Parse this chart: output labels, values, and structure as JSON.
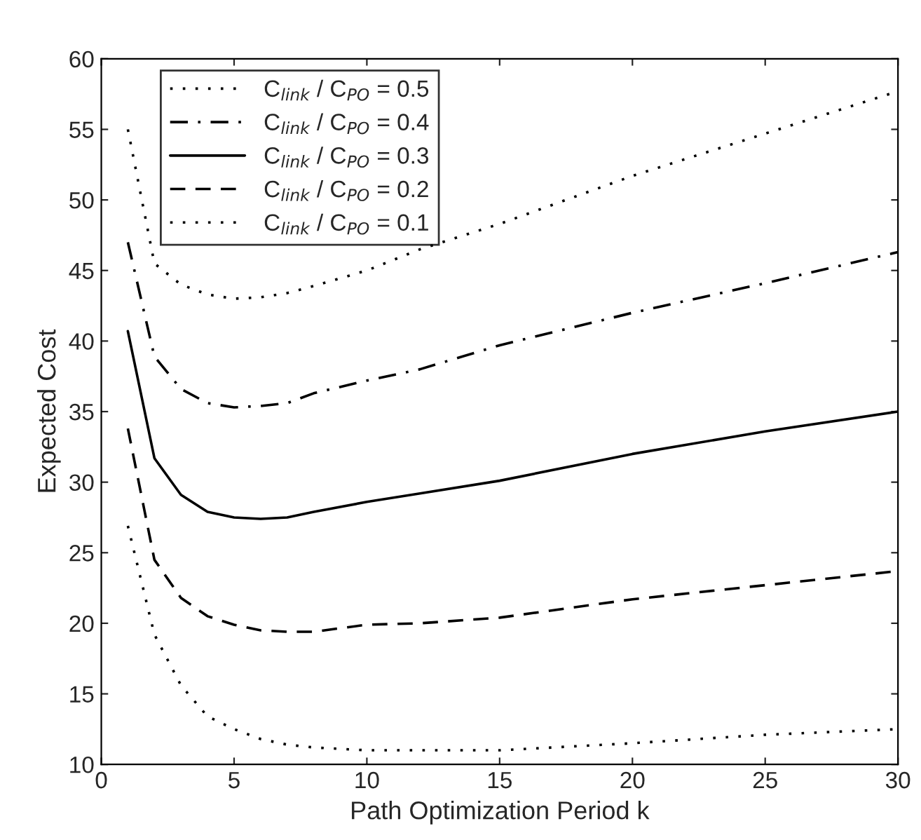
{
  "chart_data": {
    "type": "line",
    "xlabel": "Path Optimization Period k",
    "ylabel": "Expected Cost",
    "x": [
      1,
      2,
      3,
      4,
      5,
      6,
      7,
      8,
      10,
      12,
      15,
      20,
      25,
      30
    ],
    "series": [
      {
        "name": "C$_{link}$ / C$_{PO}$ = 0.5",
        "color": "#000000",
        "line_style": "dotted",
        "values": [
          55,
          45.5,
          44,
          43.3,
          43,
          43.1,
          43.4,
          43.9,
          45,
          46.5,
          48.3,
          51.7,
          54.7,
          57.7
        ]
      },
      {
        "name": "C$_{link}$ / C$_{PO}$ = 0.4",
        "color": "#000000",
        "line_style": "dashdot",
        "values": [
          47,
          38.9,
          36.6,
          35.6,
          35.3,
          35.4,
          35.6,
          36.3,
          37.2,
          38,
          39.7,
          42,
          44.1,
          46.3
        ]
      },
      {
        "name": "C$_{link}$ / C$_{PO}$ = 0.3",
        "color": "#000000",
        "line_style": "solid",
        "values": [
          40.7,
          31.7,
          29.1,
          27.9,
          27.5,
          27.4,
          27.5,
          27.9,
          28.6,
          29.2,
          30.1,
          32,
          33.6,
          35
        ]
      },
      {
        "name": "C$_{link}$ / C$_{PO}$ = 0.2",
        "color": "#000000",
        "line_style": "dashed",
        "values": [
          33.8,
          24.5,
          21.8,
          20.5,
          19.9,
          19.5,
          19.4,
          19.4,
          19.9,
          20,
          20.4,
          21.7,
          22.7,
          23.7
        ]
      },
      {
        "name": "C$_{link}$ / C$_{PO}$ = 0.1",
        "color": "#000000",
        "line_style": "dotted",
        "values": [
          26.9,
          19.2,
          15.6,
          13.4,
          12.5,
          11.8,
          11.4,
          11.2,
          11,
          11,
          11,
          11.5,
          12.1,
          12.5
        ]
      }
    ],
    "xlim": [
      0,
      30
    ],
    "xticks": [
      0,
      5,
      10,
      15,
      20,
      25,
      30
    ],
    "ylim": [
      10,
      60
    ],
    "yticks": [
      10,
      15,
      20,
      25,
      30,
      35,
      40,
      45,
      50,
      55,
      60
    ],
    "grid": false,
    "legend": "top left"
  }
}
